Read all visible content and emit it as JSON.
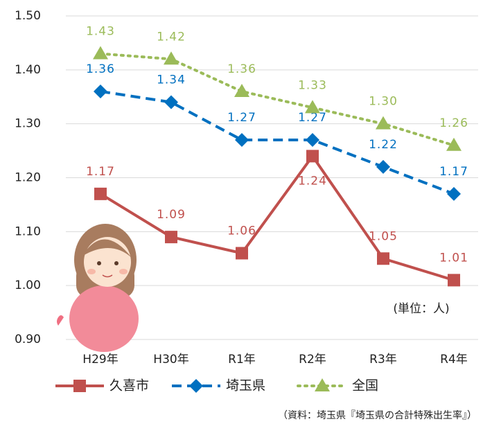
{
  "chart_data": {
    "type": "line",
    "categories": [
      "H29年",
      "H30年",
      "R1年",
      "R2年",
      "R3年",
      "R4年"
    ],
    "series": [
      {
        "name": "久喜市",
        "color": "#c0504d",
        "values": [
          1.17,
          1.09,
          1.06,
          1.24,
          1.05,
          1.01
        ],
        "value_labels": [
          "1.17",
          "1.09",
          "1.06",
          "1.24",
          "1.05",
          "1.01"
        ]
      },
      {
        "name": "埼玉県",
        "color": "#0070c0",
        "values": [
          1.36,
          1.34,
          1.27,
          1.27,
          1.22,
          1.17
        ],
        "value_labels": [
          "1.36",
          "1.34",
          "1.27",
          "1.27",
          "1.22",
          "1.17"
        ]
      },
      {
        "name": "全国",
        "color": "#9bbb59",
        "values": [
          1.43,
          1.42,
          1.36,
          1.33,
          1.3,
          1.26
        ],
        "value_labels": [
          "1.43",
          "1.42",
          "1.36",
          "1.33",
          "1.30",
          "1.26"
        ]
      }
    ],
    "ylim": [
      0.9,
      1.5
    ],
    "yticks": [
      {
        "value": 0.9,
        "label": "0.90"
      },
      {
        "value": 1.0,
        "label": "1.00"
      },
      {
        "value": 1.1,
        "label": "1.10"
      },
      {
        "value": 1.2,
        "label": "1.20"
      },
      {
        "value": 1.3,
        "label": "1.30"
      },
      {
        "value": 1.4,
        "label": "1.40"
      },
      {
        "value": 1.5,
        "label": "1.50"
      }
    ],
    "grid": true,
    "unit_note": "(単位：人)",
    "source": "（資料：埼玉県『埼玉県の合計特殊出生率』）"
  }
}
